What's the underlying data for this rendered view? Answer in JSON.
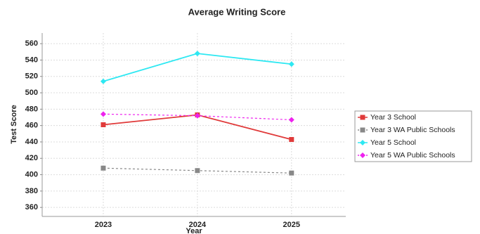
{
  "chart_data": {
    "type": "line",
    "title": "Average Writing Score",
    "x_label": "Year",
    "y_label": "Test Score",
    "categories": [
      "2023",
      "2024",
      "2025"
    ],
    "series": [
      {
        "name": "Year 3 School",
        "color": "#e03a3a",
        "marker": "square",
        "dashed": false,
        "values": [
          461,
          473,
          443
        ]
      },
      {
        "name": "Year 3 WA Public Schools",
        "color": "#888888",
        "marker": "square",
        "dashed": true,
        "values": [
          408,
          405,
          402
        ]
      },
      {
        "name": "Year 5 School",
        "color": "#2ee8f2",
        "marker": "diamond",
        "dashed": false,
        "values": [
          514,
          548,
          535
        ]
      },
      {
        "name": "Year 5 WA Public Schools",
        "color": "#ee22ee",
        "marker": "diamond",
        "dashed": true,
        "values": [
          474,
          472,
          467
        ]
      }
    ],
    "ylim": [
      349,
      573
    ],
    "yticks": [
      360,
      380,
      400,
      420,
      440,
      460,
      480,
      500,
      520,
      540,
      560
    ],
    "grid": true,
    "legend": "right"
  }
}
